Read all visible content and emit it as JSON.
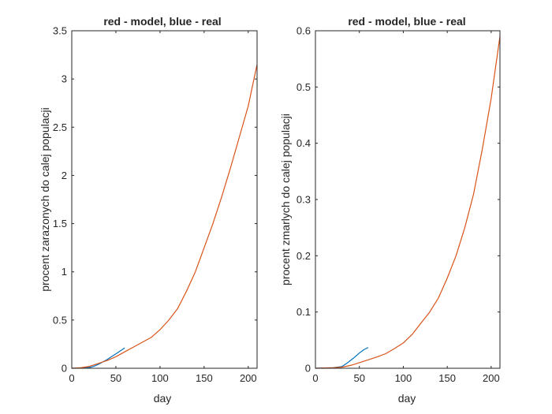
{
  "chart_data": [
    {
      "type": "line",
      "title": "red - model, blue - real",
      "xlabel": "day",
      "ylabel": "procent zarazonych do calej populacji",
      "xlim": [
        0,
        210
      ],
      "ylim": [
        0,
        3.5
      ],
      "xticks": [
        "0",
        "50",
        "100",
        "150",
        "200"
      ],
      "yticks": [
        "0",
        "0.5",
        "1",
        "1.5",
        "2",
        "2.5",
        "3",
        "3.5"
      ],
      "grid": false,
      "series": [
        {
          "color": "#0072bd",
          "x": [
            0,
            10,
            20,
            25,
            30,
            35,
            40,
            45,
            50,
            55,
            60
          ],
          "y": [
            0,
            0.002,
            0.008,
            0.02,
            0.04,
            0.065,
            0.09,
            0.12,
            0.15,
            0.18,
            0.21
          ]
        },
        {
          "color": "#d95319",
          "x": [
            0,
            10,
            20,
            30,
            40,
            50,
            60,
            70,
            80,
            90,
            100,
            110,
            120,
            130,
            140,
            150,
            160,
            170,
            180,
            190,
            200,
            210
          ],
          "y": [
            0,
            0.005,
            0.02,
            0.05,
            0.08,
            0.12,
            0.17,
            0.22,
            0.27,
            0.32,
            0.4,
            0.5,
            0.62,
            0.8,
            1.0,
            1.25,
            1.5,
            1.78,
            2.08,
            2.4,
            2.72,
            3.15
          ]
        }
      ]
    },
    {
      "type": "line",
      "title": "red - model, blue - real",
      "xlabel": "day",
      "ylabel": "procent zmarlych do calej populacji",
      "xlim": [
        0,
        210
      ],
      "ylim": [
        0,
        0.6
      ],
      "xticks": [
        "0",
        "50",
        "100",
        "150",
        "200"
      ],
      "yticks": [
        "0",
        "0.1",
        "0.2",
        "0.3",
        "0.4",
        "0.5",
        "0.6"
      ],
      "grid": false,
      "series": [
        {
          "color": "#0072bd",
          "x": [
            0,
            20,
            30,
            35,
            40,
            45,
            50,
            55,
            60
          ],
          "y": [
            0,
            0.001,
            0.003,
            0.008,
            0.014,
            0.02,
            0.027,
            0.033,
            0.037
          ]
        },
        {
          "color": "#d95319",
          "x": [
            0,
            10,
            20,
            30,
            40,
            50,
            60,
            70,
            80,
            90,
            100,
            110,
            120,
            130,
            140,
            150,
            160,
            170,
            180,
            190,
            200,
            210
          ],
          "y": [
            0,
            0.0005,
            0.001,
            0.002,
            0.005,
            0.01,
            0.015,
            0.02,
            0.026,
            0.035,
            0.045,
            0.06,
            0.08,
            0.1,
            0.125,
            0.16,
            0.2,
            0.25,
            0.31,
            0.39,
            0.48,
            0.59
          ]
        }
      ]
    }
  ]
}
